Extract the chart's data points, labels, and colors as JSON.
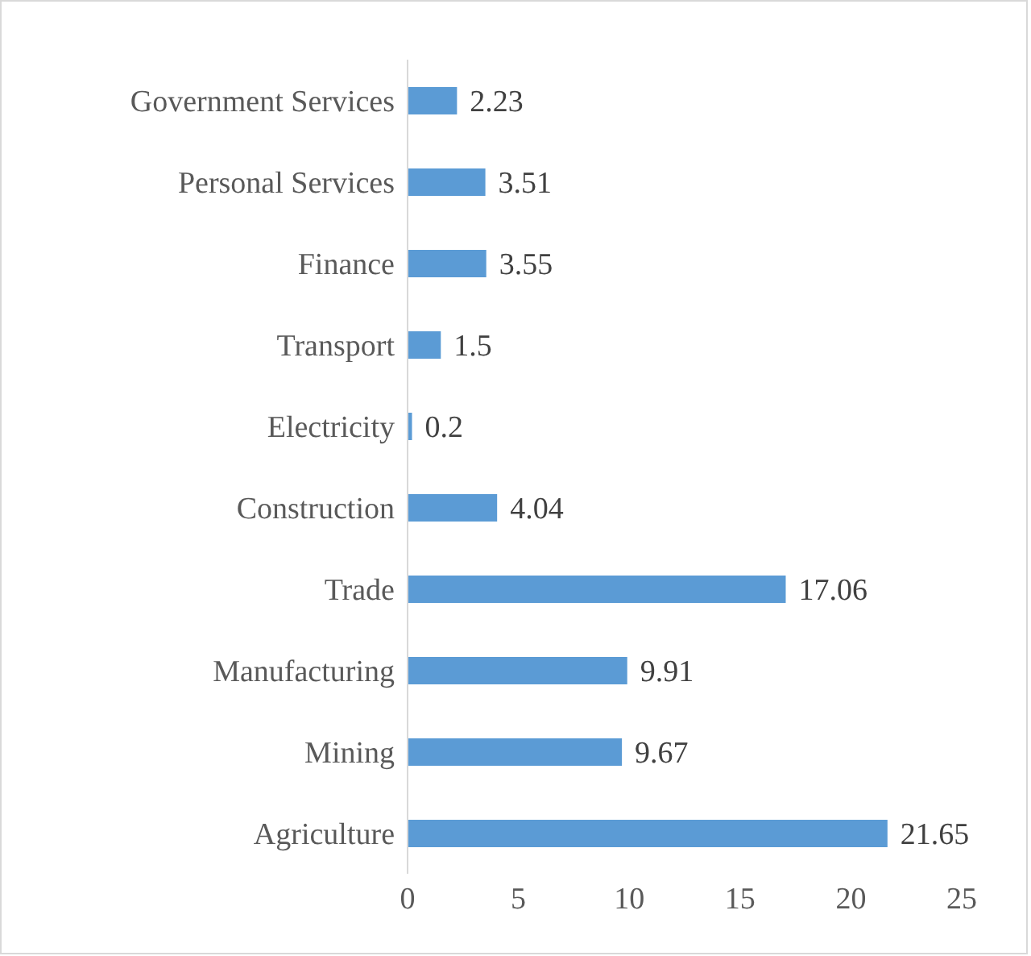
{
  "chart_data": {
    "type": "bar",
    "orientation": "horizontal",
    "categories": [
      "Government Services",
      "Personal  Services",
      "Finance",
      "Transport",
      "Electricity",
      "Construction",
      "Trade",
      "Manufacturing",
      "Mining",
      "Agriculture"
    ],
    "values": [
      2.23,
      3.51,
      3.55,
      1.5,
      0.2,
      4.04,
      17.06,
      9.91,
      9.67,
      21.65
    ],
    "color": "#5b9bd5",
    "xlim": [
      0,
      25
    ],
    "xticks": [
      0,
      5,
      10,
      15,
      20,
      25
    ],
    "grid": false,
    "legend": false,
    "data_labels": true
  }
}
